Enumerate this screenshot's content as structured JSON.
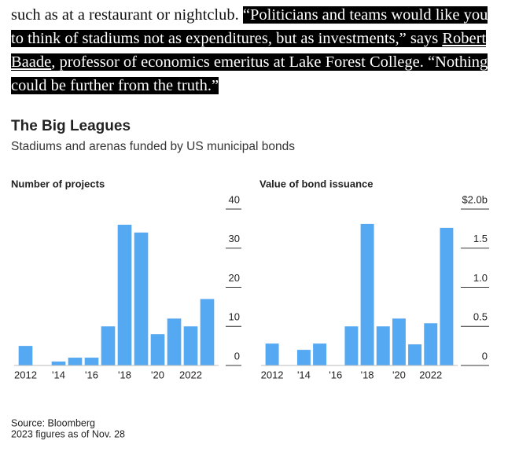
{
  "article": {
    "plain": "such as at a restaurant or nightclub.",
    "quote_start": "“Politicians and teams would like you to think of stadiums not as expenditures, but as investments,” says",
    "link": "Robert Baade",
    "quote_end": ", professor of economics emeritus at Lake Forest College. “Nothing could be further from the truth.”"
  },
  "figure": {
    "title": "The Big Leagues",
    "subtitle": "Stadiums and arenas funded by US municipal bonds",
    "source": "Source: Bloomberg",
    "note": "2023 figures as of Nov. 28"
  },
  "chart_data": [
    {
      "type": "bar",
      "title": "Number of projects",
      "categories": [
        "2012",
        null,
        "'14",
        null,
        "'16",
        null,
        "'18",
        null,
        "'20",
        null,
        "2022",
        null
      ],
      "values": [
        5,
        0,
        1,
        2,
        2,
        10,
        36,
        34,
        8,
        12,
        10,
        17
      ],
      "color": "#55a8f2",
      "ylim": [
        0,
        40
      ],
      "yticks": [
        0,
        10,
        20,
        30,
        40
      ]
    },
    {
      "type": "bar",
      "title": "Value of bond issuance",
      "categories": [
        "2012",
        null,
        "'14",
        null,
        "'16",
        null,
        "'18",
        null,
        "'20",
        null,
        "2022",
        null
      ],
      "values": [
        0.28,
        0,
        0.2,
        0.28,
        0,
        0.5,
        1.81,
        0.5,
        0.6,
        0.27,
        0.54,
        1.76
      ],
      "color": "#55a8f2",
      "ylim": [
        0,
        2
      ],
      "yticks": [
        0,
        0.5,
        {
          "value": 1,
          "label": "1.0"
        },
        1.5,
        {
          "value": 2,
          "label": "$2.0b"
        }
      ]
    }
  ]
}
